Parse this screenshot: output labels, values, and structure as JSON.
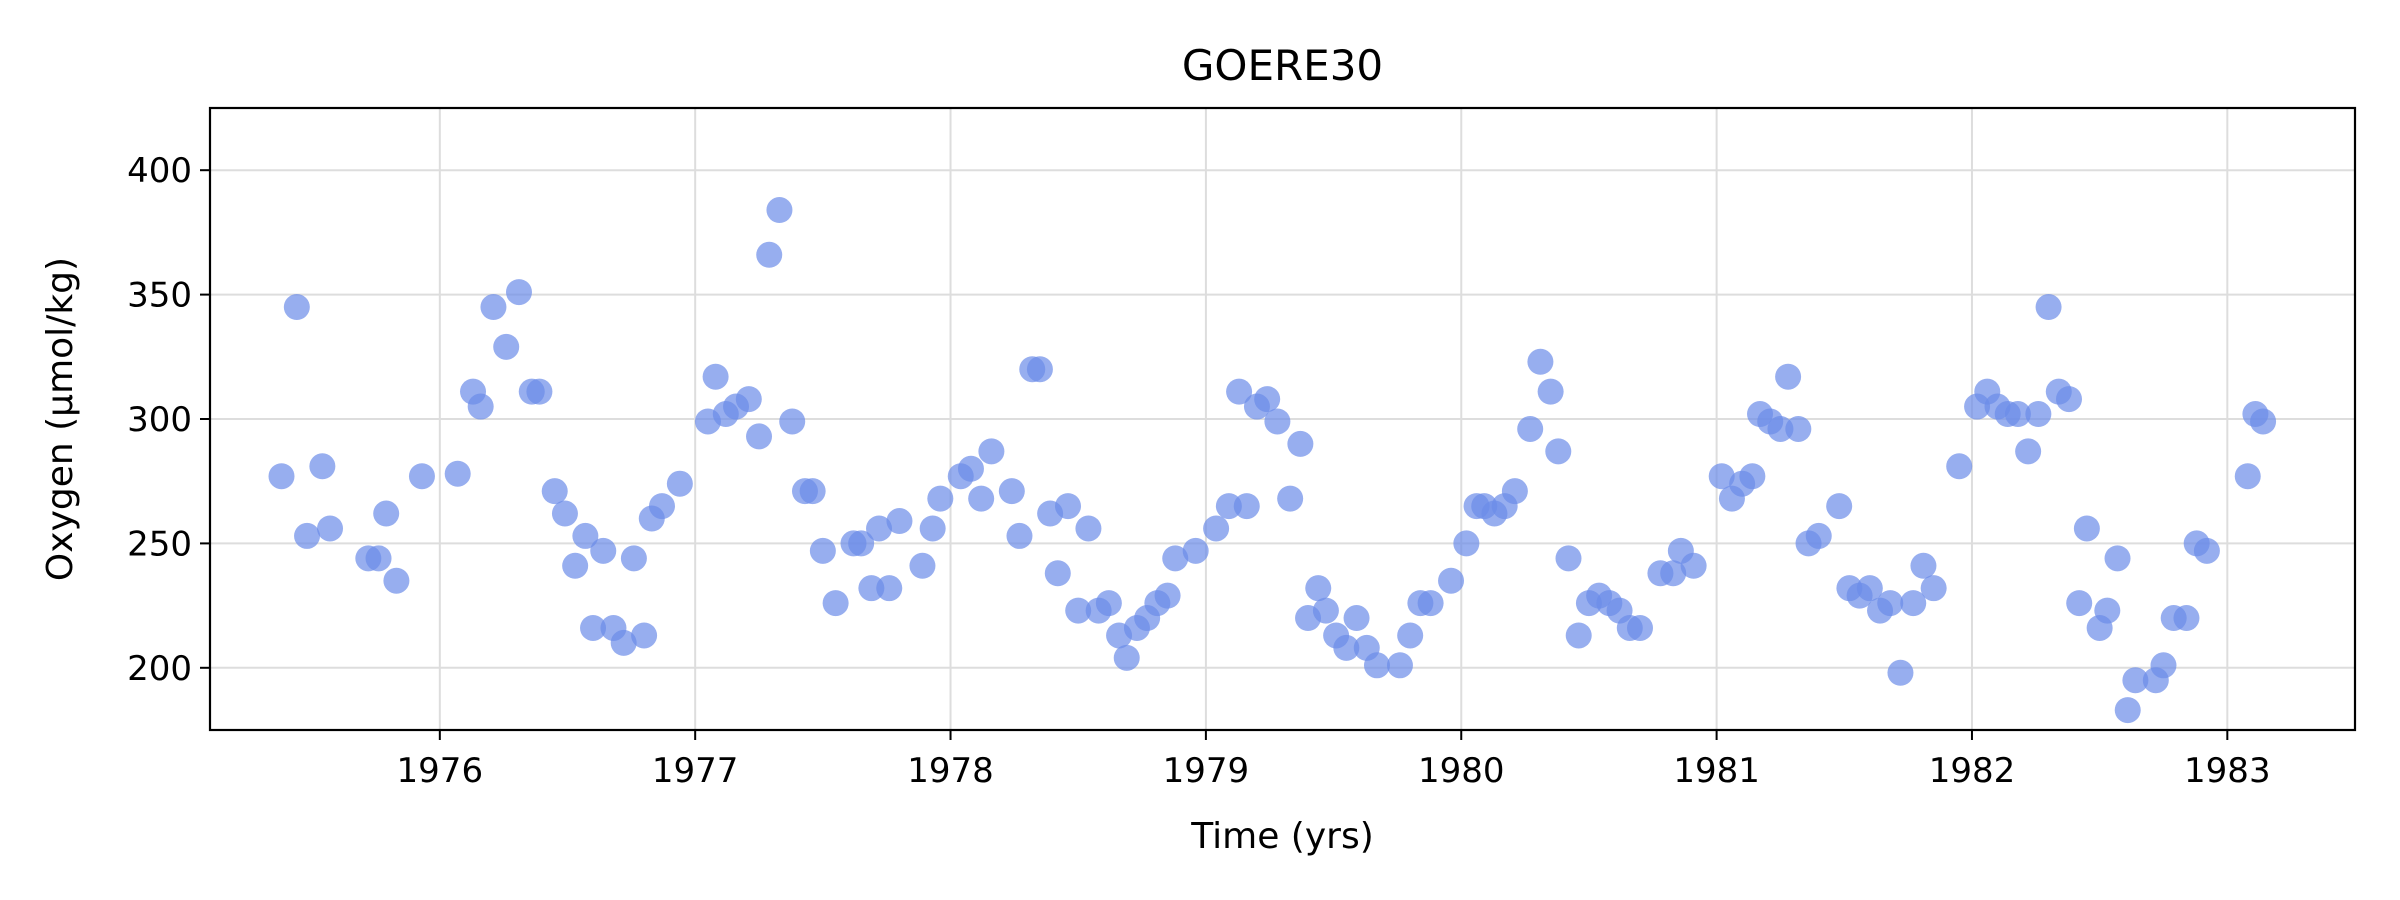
{
  "chart_data": {
    "type": "scatter",
    "title": "GOERE30",
    "xlabel": "Time (yrs)",
    "ylabel": "Oxygen (µmol/kg)",
    "xlim": [
      1975.1,
      1983.5
    ],
    "ylim": [
      175,
      425
    ],
    "xticks": [
      1976,
      1977,
      1978,
      1979,
      1980,
      1981,
      1982,
      1983
    ],
    "yticks": [
      200,
      250,
      300,
      350,
      400
    ],
    "grid": true,
    "legend": "none",
    "marker_color": "#6b8ce8",
    "series": [
      {
        "x": [
          1975.38,
          1975.44,
          1975.48,
          1975.54,
          1975.57,
          1975.72,
          1975.76,
          1975.79,
          1975.83,
          1975.93,
          1976.07,
          1976.13,
          1976.16,
          1976.21,
          1976.26,
          1976.31,
          1976.36,
          1976.39,
          1976.45,
          1976.49,
          1976.53,
          1976.57,
          1976.6,
          1976.64,
          1976.68,
          1976.72,
          1976.76,
          1976.8,
          1976.83,
          1976.87,
          1976.94,
          1977.05,
          1977.08,
          1977.12,
          1977.16,
          1977.21,
          1977.25,
          1977.29,
          1977.33,
          1977.38,
          1977.43,
          1977.46,
          1977.5,
          1977.55,
          1977.62,
          1977.65,
          1977.69,
          1977.72,
          1977.76,
          1977.8,
          1977.89,
          1977.93,
          1977.96,
          1978.04,
          1978.08,
          1978.12,
          1978.16,
          1978.24,
          1978.27,
          1978.32,
          1978.35,
          1978.39,
          1978.42,
          1978.46,
          1978.5,
          1978.54,
          1978.58,
          1978.62,
          1978.66,
          1978.69,
          1978.73,
          1978.77,
          1978.81,
          1978.85,
          1978.88,
          1978.96,
          1979.04,
          1979.09,
          1979.13,
          1979.16,
          1979.2,
          1979.24,
          1979.28,
          1979.33,
          1979.37,
          1979.4,
          1979.44,
          1979.47,
          1979.51,
          1979.55,
          1979.59,
          1979.63,
          1979.67,
          1979.76,
          1979.8,
          1979.84,
          1979.88,
          1979.96,
          1980.02,
          1980.06,
          1980.09,
          1980.13,
          1980.17,
          1980.21,
          1980.27,
          1980.31,
          1980.35,
          1980.38,
          1980.42,
          1980.46,
          1980.5,
          1980.54,
          1980.58,
          1980.62,
          1980.66,
          1980.7,
          1980.78,
          1980.83,
          1980.86,
          1980.91,
          1981.02,
          1981.06,
          1981.1,
          1981.14,
          1981.17,
          1981.21,
          1981.25,
          1981.28,
          1981.32,
          1981.36,
          1981.4,
          1981.48,
          1981.52,
          1981.56,
          1981.6,
          1981.64,
          1981.68,
          1981.72,
          1981.77,
          1981.81,
          1981.85,
          1981.95,
          1982.02,
          1982.06,
          1982.1,
          1982.14,
          1982.18,
          1982.22,
          1982.26,
          1982.3,
          1982.34,
          1982.38,
          1982.42,
          1982.45,
          1982.5,
          1982.53,
          1982.57,
          1982.61,
          1982.64,
          1982.72,
          1982.75,
          1982.79,
          1982.84,
          1982.88,
          1982.92,
          1983.08,
          1983.11,
          1983.14
        ],
        "y": [
          277,
          345,
          253,
          281,
          256,
          244,
          244,
          262,
          235,
          277,
          278,
          311,
          305,
          345,
          329,
          351,
          311,
          311,
          271,
          262,
          241,
          253,
          216,
          247,
          216,
          210,
          244,
          213,
          260,
          265,
          274,
          299,
          317,
          302,
          305,
          308,
          293,
          366,
          384,
          299,
          271,
          271,
          247,
          226,
          250,
          250,
          232,
          256,
          232,
          259,
          241,
          256,
          268,
          277,
          280,
          268,
          287,
          271,
          253,
          320,
          320,
          262,
          238,
          265,
          223,
          256,
          223,
          226,
          213,
          204,
          216,
          220,
          226,
          229,
          244,
          247,
          256,
          265,
          311,
          265,
          305,
          308,
          299,
          268,
          290,
          220,
          232,
          223,
          213,
          208,
          220,
          208,
          201,
          201,
          213,
          226,
          226,
          235,
          250,
          265,
          265,
          262,
          265,
          271,
          296,
          323,
          311,
          287,
          244,
          213,
          226,
          229,
          226,
          223,
          216,
          216,
          238,
          238,
          247,
          241,
          277,
          268,
          274,
          277,
          302,
          299,
          296,
          317,
          296,
          250,
          253,
          265,
          232,
          229,
          232,
          223,
          226,
          198,
          226,
          241,
          232,
          281,
          305,
          311,
          305,
          302,
          302,
          287,
          302,
          345,
          311,
          308,
          226,
          256,
          216,
          223,
          244,
          183,
          195,
          195,
          201,
          220,
          220,
          250,
          247,
          277,
          302,
          299
        ]
      }
    ]
  }
}
